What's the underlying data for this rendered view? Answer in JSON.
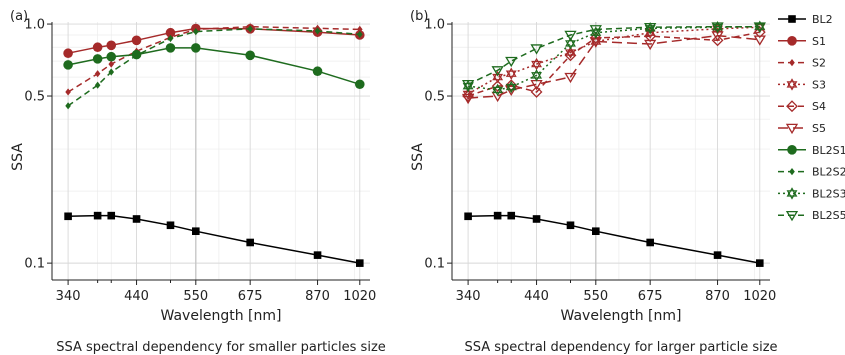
{
  "chart_data": [
    {
      "type": "line",
      "panel_label": "(a)",
      "caption": "SSA spectral dependency for smaller particles size",
      "xlabel": "Wavelength [nm]",
      "ylabel": "SSA",
      "xscale": "log",
      "yscale": "log",
      "xlim": [
        320,
        1060
      ],
      "ylim": [
        0.085,
        1.02
      ],
      "xticks": [
        340,
        440,
        550,
        675,
        870,
        1020
      ],
      "xtick_labels": [
        "340",
        "440",
        "550",
        "675",
        "870",
        "1020"
      ],
      "yticks": [
        0.1,
        0.5,
        1.0
      ],
      "ytick_labels": [
        "0.1",
        "0.5",
        "1.0"
      ],
      "grid": true,
      "x": [
        340,
        380,
        400,
        440,
        500,
        550,
        675,
        870,
        1020
      ],
      "series": [
        {
          "name": "BL2",
          "color": "#000000",
          "marker": "square",
          "dash": "solid",
          "values": [
            0.157,
            0.158,
            0.158,
            0.153,
            0.144,
            0.136,
            0.122,
            0.108,
            0.1
          ]
        },
        {
          "name": "S1",
          "color": "#a52a2a",
          "marker": "circle",
          "dash": "solid",
          "values": [
            0.755,
            0.8,
            0.815,
            0.855,
            0.92,
            0.958,
            0.955,
            0.925,
            0.9
          ]
        },
        {
          "name": "S2",
          "color": "#a52a2a",
          "marker": "diamond-small",
          "dash": "dash",
          "values": [
            0.52,
            0.62,
            0.68,
            0.77,
            0.88,
            0.95,
            0.975,
            0.96,
            0.95
          ]
        },
        {
          "name": "BL2S1",
          "color": "#1e6b1e",
          "marker": "circle",
          "dash": "solid",
          "values": [
            0.675,
            0.715,
            0.73,
            0.745,
            0.795,
            0.795,
            0.74,
            0.635,
            0.56
          ]
        },
        {
          "name": "BL2S2",
          "color": "#1e6b1e",
          "marker": "diamond-small",
          "dash": "dash",
          "values": [
            0.455,
            0.555,
            0.63,
            0.74,
            0.87,
            0.93,
            0.955,
            0.935,
            0.905
          ]
        }
      ]
    },
    {
      "type": "line",
      "panel_label": "(b)",
      "caption": "SSA spectral dependency for larger particle size",
      "xlabel": "Wavelength [nm]",
      "ylabel": "SSA",
      "xscale": "log",
      "yscale": "log",
      "xlim": [
        320,
        1060
      ],
      "ylim": [
        0.085,
        1.02
      ],
      "xticks": [
        340,
        440,
        550,
        675,
        870,
        1020
      ],
      "xtick_labels": [
        "340",
        "440",
        "550",
        "675",
        "870",
        "1020"
      ],
      "yticks": [
        0.1,
        0.5,
        1.0
      ],
      "ytick_labels": [
        "0.1",
        "0.5",
        "1.0"
      ],
      "grid": true,
      "x": [
        340,
        380,
        400,
        440,
        500,
        550,
        675,
        870,
        1020
      ],
      "series": [
        {
          "name": "BL2",
          "color": "#000000",
          "marker": "square",
          "dash": "solid",
          "values": [
            0.157,
            0.158,
            0.158,
            0.153,
            0.144,
            0.136,
            0.122,
            0.108,
            0.1
          ]
        },
        {
          "name": "S3",
          "color": "#a52a2a",
          "marker": "star",
          "dash": "dot",
          "values": [
            0.51,
            0.6,
            0.62,
            0.68,
            0.76,
            0.845,
            0.92,
            0.955,
            0.97
          ]
        },
        {
          "name": "S4",
          "color": "#a52a2a",
          "marker": "diamond-open",
          "dash": "dash",
          "values": [
            0.5,
            0.55,
            0.555,
            0.52,
            0.74,
            0.875,
            0.89,
            0.855,
            0.925
          ]
        },
        {
          "name": "S5",
          "color": "#a52a2a",
          "marker": "triangle-down-open",
          "dash": "longdash",
          "values": [
            0.49,
            0.5,
            0.53,
            0.56,
            0.6,
            0.845,
            0.825,
            0.895,
            0.86
          ]
        },
        {
          "name": "BL2S3",
          "color": "#1e6b1e",
          "marker": "star",
          "dash": "dot",
          "values": [
            0.55,
            0.53,
            0.545,
            0.61,
            0.83,
            0.92,
            0.96,
            0.97,
            0.975
          ]
        },
        {
          "name": "BL2S5",
          "color": "#1e6b1e",
          "marker": "triangle-down-open",
          "dash": "dash",
          "values": [
            0.56,
            0.64,
            0.7,
            0.79,
            0.9,
            0.95,
            0.97,
            0.975,
            0.975
          ]
        }
      ]
    }
  ],
  "legend": {
    "placement": "right",
    "entries": [
      {
        "name": "BL2",
        "color": "#000000",
        "marker": "square",
        "dash": "solid"
      },
      {
        "name": "S1",
        "color": "#a52a2a",
        "marker": "circle",
        "dash": "solid"
      },
      {
        "name": "S2",
        "color": "#a52a2a",
        "marker": "diamond-small",
        "dash": "dash"
      },
      {
        "name": "S3",
        "color": "#a52a2a",
        "marker": "star",
        "dash": "dot"
      },
      {
        "name": "S4",
        "color": "#a52a2a",
        "marker": "diamond-open",
        "dash": "dash"
      },
      {
        "name": "S5",
        "color": "#a52a2a",
        "marker": "triangle-down-open",
        "dash": "longdash"
      },
      {
        "name": "BL2S1",
        "color": "#1e6b1e",
        "marker": "circle",
        "dash": "solid"
      },
      {
        "name": "BL2S2",
        "color": "#1e6b1e",
        "marker": "diamond-small",
        "dash": "dash"
      },
      {
        "name": "BL2S3",
        "color": "#1e6b1e",
        "marker": "star",
        "dash": "dot"
      },
      {
        "name": "BL2S5",
        "color": "#1e6b1e",
        "marker": "triangle-down-open",
        "dash": "dash"
      }
    ]
  }
}
